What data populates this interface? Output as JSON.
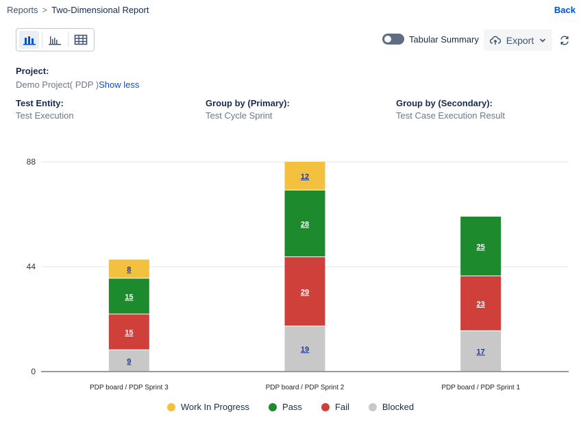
{
  "breadcrumb": {
    "parent": "Reports",
    "separator": ">",
    "current": "Two-Dimensional Report"
  },
  "back_label": "Back",
  "view_toggles": [
    "stacked-bar-chart-icon",
    "bar-chart-icon",
    "table-icon"
  ],
  "tabular_summary": {
    "label": "Tabular Summary",
    "enabled": false
  },
  "export_label": "Export",
  "project": {
    "label": "Project:",
    "value": "Demo Project( PDP )",
    "show_less": "Show less"
  },
  "test_entity": {
    "label": "Test Entity:",
    "value": "Test Execution"
  },
  "group_primary": {
    "label": "Group by (Primary):",
    "value": "Test Cycle Sprint"
  },
  "group_secondary": {
    "label": "Group by (Secondary):",
    "value": "Test Case Execution Result"
  },
  "chart_data": {
    "type": "bar",
    "stacked": true,
    "categories": [
      "PDP board / PDP Sprint 3",
      "PDP board / PDP Sprint 2",
      "PDP board / PDP Sprint 1"
    ],
    "series": [
      {
        "name": "Blocked",
        "color": "#c8c8c8",
        "values": [
          9,
          19,
          17
        ]
      },
      {
        "name": "Fail",
        "color": "#d0403a",
        "values": [
          15,
          29,
          23
        ]
      },
      {
        "name": "Pass",
        "color": "#1e8a2e",
        "values": [
          15,
          28,
          25
        ]
      },
      {
        "name": "Work In Progress",
        "color": "#f3c13e",
        "values": [
          8,
          12,
          0
        ]
      }
    ],
    "yticks": [
      "0",
      "44",
      "88"
    ],
    "ylim": [
      0,
      88
    ],
    "grid": true,
    "legend_position": "bottom"
  },
  "legend": [
    {
      "name": "Work In Progress",
      "color": "#f3c13e"
    },
    {
      "name": "Pass",
      "color": "#1e8a2e"
    },
    {
      "name": "Fail",
      "color": "#d0403a"
    },
    {
      "name": "Blocked",
      "color": "#c8c8c8"
    }
  ]
}
